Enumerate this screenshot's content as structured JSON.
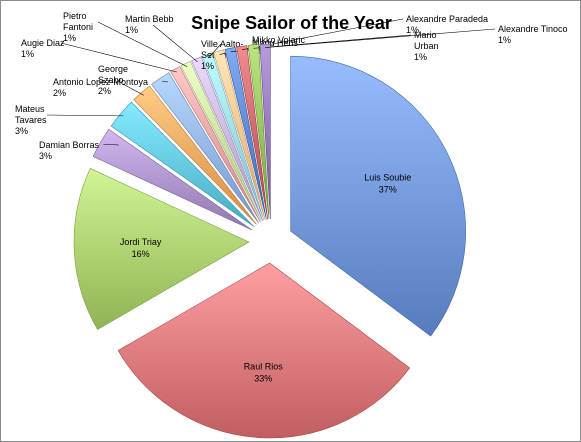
{
  "chart_data": {
    "type": "pie",
    "title": "Snipe Sailor of the Year",
    "label_format": "percent",
    "slices": [
      {
        "name": "Luis Soubie",
        "label": "37%",
        "value": 37,
        "color": "#6f95d6",
        "placement": "inside"
      },
      {
        "name": "Raul Rios",
        "label": "33%",
        "value": 33,
        "color": "#d9777a",
        "placement": "inside"
      },
      {
        "name": "Jordi Triay",
        "label": "16%",
        "value": 16,
        "color": "#a9cc6d",
        "placement": "inside"
      },
      {
        "name": "Damian Borras",
        "label": "3%",
        "value": 3,
        "color": "#a990c9",
        "placement": "outside"
      },
      {
        "name": "Mateus Tavares",
        "label": "3%",
        "value": 3,
        "color": "#5fc3dd",
        "placement": "outside"
      },
      {
        "name": "Antonio Lopez-Montoya",
        "label": "2%",
        "value": 2,
        "color": "#f0a45d",
        "placement": "outside"
      },
      {
        "name": "George Szabo",
        "label": "2%",
        "value": 2,
        "color": "#8fb1e2",
        "placement": "outside"
      },
      {
        "name": "Augie Diaz",
        "label": "1%",
        "value": 1,
        "color": "#e8a0a0",
        "placement": "outside"
      },
      {
        "name": "Pietro Fantoni",
        "label": "1%",
        "value": 1,
        "color": "#c6df9f",
        "placement": "outside"
      },
      {
        "name": "Martin Bebb",
        "label": "1%",
        "value": 1,
        "color": "#c3b2dc",
        "placement": "outside"
      },
      {
        "name": "Ville Aalto-Setala",
        "label": "1%",
        "value": 1,
        "color": "#99d6e6",
        "placement": "outside"
      },
      {
        "name": "Mikko Volaric",
        "label": "1%",
        "value": 1,
        "color": "#f6c08f",
        "placement": "outside"
      },
      {
        "name": "Manu Hens",
        "label": "1%",
        "value": 1,
        "color": "#5a83c9",
        "placement": "outside"
      },
      {
        "name": "Alexandre Paradeda",
        "label": "1%",
        "value": 1,
        "color": "#c86468",
        "placement": "outside"
      },
      {
        "name": "Mario Urban",
        "label": "1%",
        "value": 1,
        "color": "#93bd58",
        "placement": "outside"
      },
      {
        "name": "Alexandre Tinoco",
        "label": "1%",
        "value": 1,
        "color": "#8d74b5",
        "placement": "outside"
      }
    ]
  }
}
